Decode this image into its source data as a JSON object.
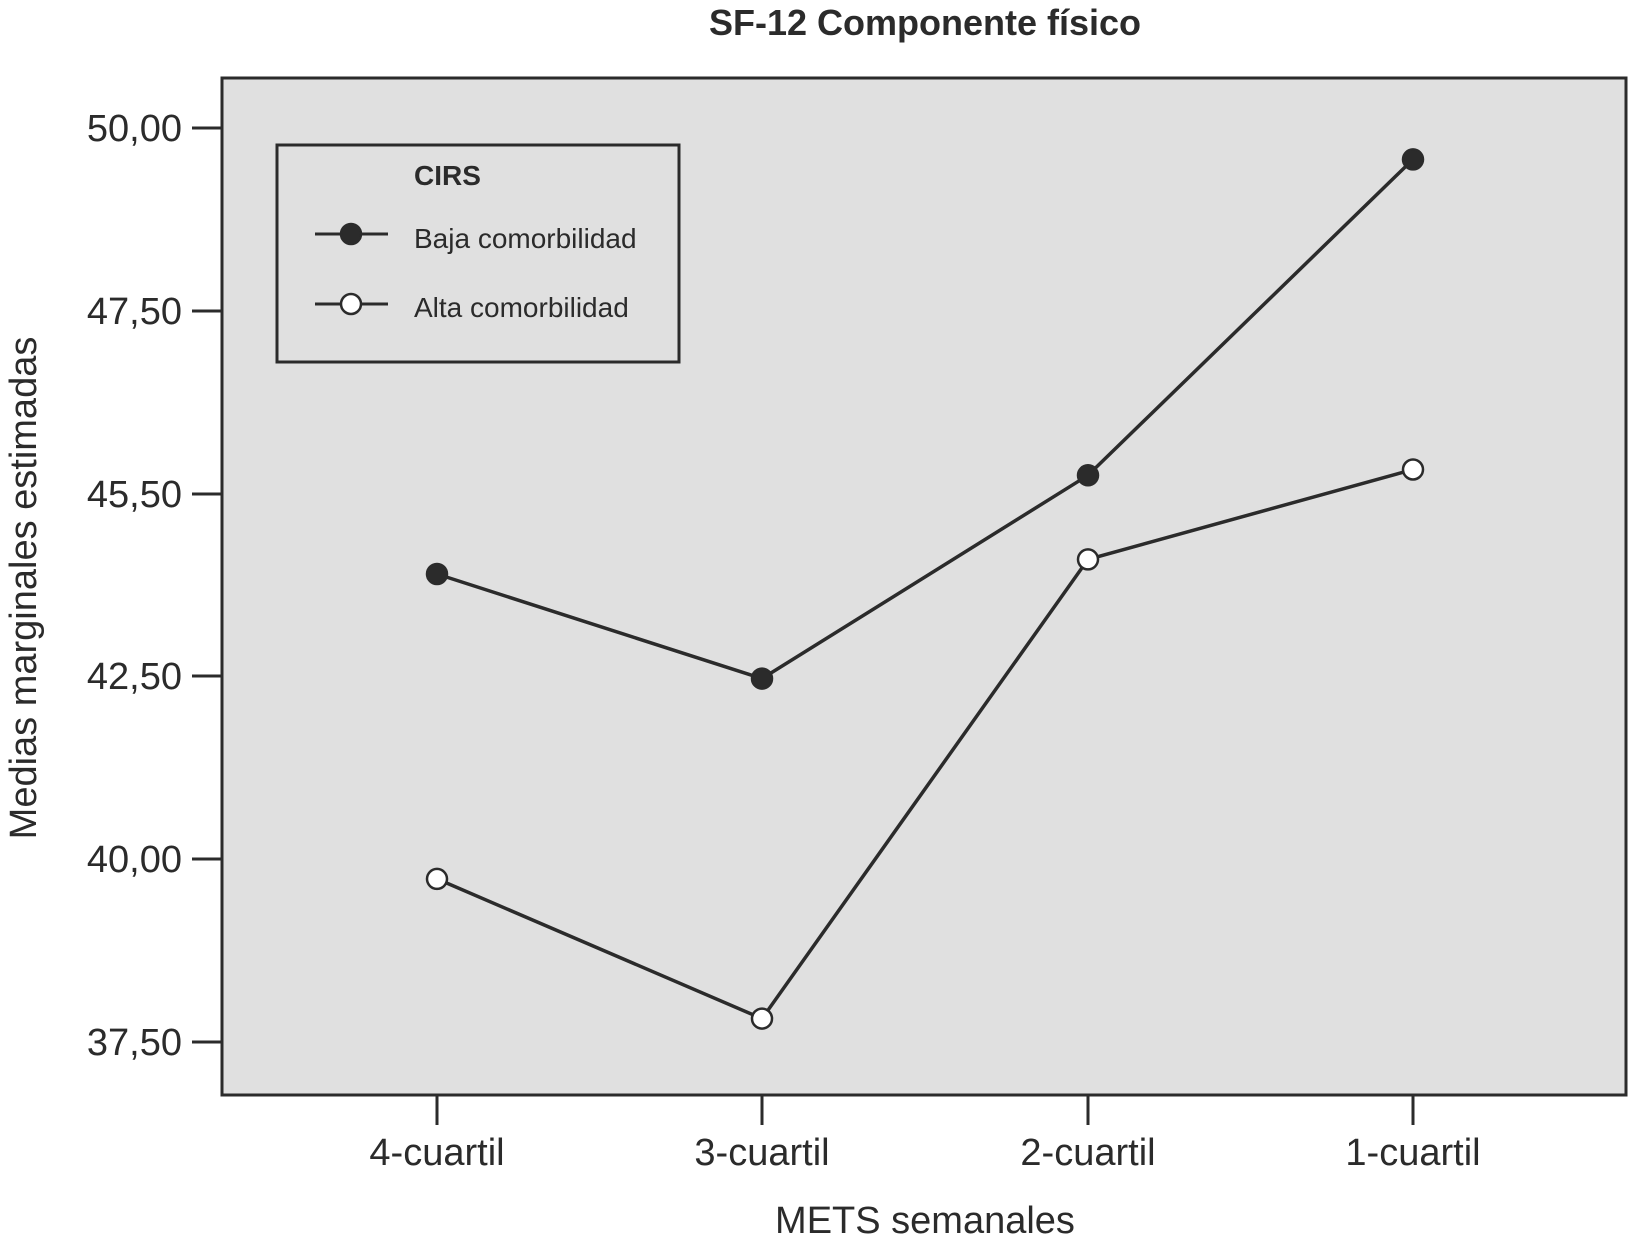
{
  "chart_data": {
    "type": "line",
    "title": "SF-12 Componente físico",
    "xlabel": "METS semanales",
    "ylabel": "Medias marginales estimadas",
    "categories": [
      "4-cuartil",
      "3-cuartil",
      "2-cuartil",
      "1-cuartil"
    ],
    "yticks": [
      "50,00",
      "47,50",
      "45,50",
      "42,50",
      "40,00",
      "37,50"
    ],
    "legend": {
      "title": "CIRS",
      "placement": "top-left"
    },
    "series": [
      {
        "name": "Baja comorbilidad",
        "marker": "filled-circle",
        "values": [
          43.9,
          42.47,
          45.25,
          49.57
        ]
      },
      {
        "name": "Alta comorbilidad",
        "marker": "open-circle",
        "values": [
          39.73,
          37.82,
          44.1,
          45.33
        ]
      }
    ],
    "grid": false,
    "background_color": "#e0e0e0",
    "line_color": "#2b2b2b"
  }
}
